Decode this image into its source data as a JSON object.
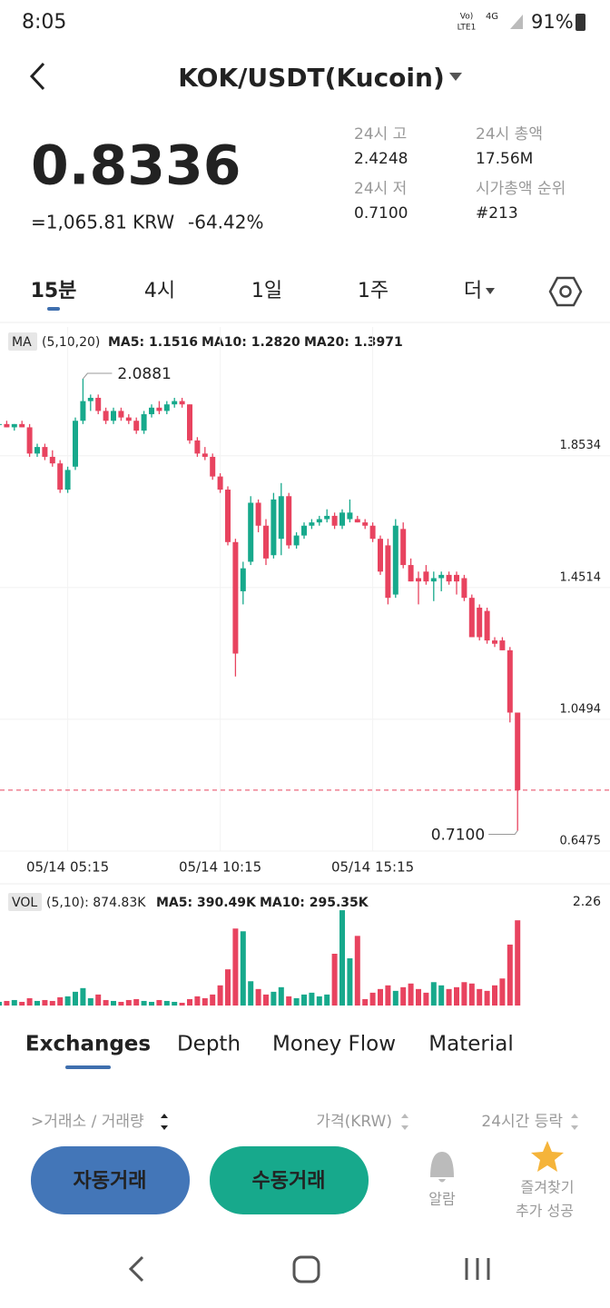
{
  "status": {
    "time": "8:05",
    "net": "Vo)",
    "lte": "LTE1",
    "g": "4G",
    "battery": "91%"
  },
  "header": {
    "title": "KOK/USDT(Kucoin)"
  },
  "price": {
    "last": "0.8336",
    "krw": "=1,065.81 KRW",
    "change": "-64.42%"
  },
  "stats": [
    {
      "label": "24시 고",
      "value": "2.4248"
    },
    {
      "label": "24시 총액",
      "value": "17.56M"
    },
    {
      "label": "24시 저",
      "value": "0.7100"
    },
    {
      "label": "시가총액 순위",
      "value": "#213"
    }
  ],
  "tabs": [
    "15분",
    "4시",
    "1일",
    "1주",
    "더"
  ],
  "legend": {
    "ma": "MA",
    "params": "(5,10,20)",
    "ma5": "MA5: 1.1516",
    "ma10": "MA10: 1.2820",
    "ma20": "MA20: 1.3971"
  },
  "vol_legend": {
    "vol": "VOL",
    "params": "(5,10): 874.83K",
    "ma5": "MA5: 390.49K",
    "ma10": "MA10: 295.35K"
  },
  "chart_data": {
    "type": "candlestick",
    "categories": [
      null,
      null,
      null,
      null,
      null,
      null,
      null,
      null,
      null,
      "05/14 05:15",
      null,
      null,
      null,
      null,
      null,
      null,
      null,
      null,
      null,
      null,
      null,
      null,
      null,
      null,
      null,
      null,
      null,
      null,
      null,
      "05/14 10:15",
      null,
      null,
      null,
      null,
      null,
      null,
      null,
      null,
      null,
      null,
      null,
      null,
      null,
      null,
      null,
      null,
      null,
      null,
      null,
      "05/14 15:15",
      null,
      null,
      null,
      null,
      null,
      null,
      null,
      null,
      null,
      null,
      null,
      null,
      null,
      null,
      null,
      null,
      null,
      null,
      null
    ],
    "open": [
      1.95,
      1.95,
      1.94,
      1.95,
      1.94,
      1.86,
      1.88,
      1.85,
      1.83,
      1.75,
      1.82,
      1.96,
      2.02,
      2.03,
      1.99,
      1.96,
      1.99,
      1.97,
      1.96,
      1.93,
      1.98,
      2.0,
      1.99,
      2.01,
      2.02,
      2.01,
      1.9,
      1.86,
      1.85,
      1.79,
      1.75,
      1.59,
      1.44,
      1.53,
      1.71,
      1.64,
      1.55,
      1.6,
      1.73,
      1.58,
      1.61,
      1.64,
      1.65,
      1.66,
      1.67,
      1.64,
      1.66,
      1.66,
      1.65,
      1.64,
      1.6,
      1.58,
      1.43,
      1.63,
      1.52,
      1.48,
      1.5,
      1.47,
      1.48,
      1.49,
      1.49,
      1.48,
      1.42,
      1.39,
      1.38,
      1.29,
      1.29,
      1.26,
      1.07
    ],
    "high": [
      1.96,
      1.96,
      1.95,
      1.96,
      1.95,
      1.89,
      1.89,
      1.87,
      1.84,
      1.82,
      1.97,
      2.0881,
      2.04,
      2.04,
      2.0,
      2.0,
      2.0,
      1.98,
      1.97,
      1.99,
      2.01,
      2.02,
      2.02,
      2.03,
      2.03,
      2.01,
      1.91,
      1.88,
      1.86,
      1.8,
      1.76,
      1.6,
      1.53,
      1.73,
      1.72,
      1.66,
      1.74,
      1.77,
      1.74,
      1.62,
      1.65,
      1.66,
      1.67,
      1.69,
      1.68,
      1.69,
      1.72,
      1.67,
      1.66,
      1.65,
      1.61,
      1.6,
      1.66,
      1.65,
      1.54,
      1.5,
      1.52,
      1.5,
      1.5,
      1.5,
      1.5,
      1.49,
      1.43,
      1.4,
      1.39,
      1.3,
      1.3,
      1.27,
      1.07
    ],
    "low": [
      1.94,
      1.94,
      1.93,
      1.94,
      1.85,
      1.85,
      1.84,
      1.82,
      1.74,
      1.74,
      1.81,
      1.95,
      1.99,
      1.98,
      1.95,
      1.95,
      1.96,
      1.95,
      1.92,
      1.92,
      1.97,
      1.98,
      1.98,
      2.0,
      2.0,
      1.89,
      1.85,
      1.84,
      1.78,
      1.74,
      1.58,
      1.18,
      1.4,
      1.52,
      1.62,
      1.52,
      1.54,
      1.55,
      1.57,
      1.57,
      1.6,
      1.63,
      1.64,
      1.65,
      1.63,
      1.63,
      1.65,
      1.65,
      1.63,
      1.59,
      1.49,
      1.4,
      1.42,
      1.51,
      1.47,
      1.4,
      1.46,
      1.41,
      1.44,
      1.46,
      1.43,
      1.41,
      1.3,
      1.29,
      1.28,
      1.27,
      1.26,
      1.04,
      0.71
    ],
    "close": [
      1.95,
      1.94,
      1.95,
      1.94,
      1.86,
      1.88,
      1.85,
      1.83,
      1.75,
      1.81,
      1.96,
      2.02,
      2.03,
      1.99,
      1.96,
      1.99,
      1.97,
      1.96,
      1.93,
      1.98,
      2.0,
      1.99,
      2.01,
      2.02,
      2.01,
      1.9,
      1.86,
      1.85,
      1.79,
      1.75,
      1.59,
      1.25,
      1.51,
      1.71,
      1.64,
      1.54,
      1.72,
      1.73,
      1.58,
      1.61,
      1.64,
      1.65,
      1.66,
      1.67,
      1.64,
      1.68,
      1.68,
      1.65,
      1.64,
      1.6,
      1.5,
      1.42,
      1.64,
      1.52,
      1.47,
      1.47,
      1.47,
      1.48,
      1.49,
      1.47,
      1.47,
      1.42,
      1.3,
      1.3,
      1.29,
      1.28,
      1.26,
      1.07,
      0.8336
    ],
    "ylim": [
      0.6475,
      2.246
    ],
    "yticks": [
      1.8534,
      1.4514,
      1.0494,
      0.6475
    ],
    "high_label": "2.0881",
    "low_label": "0.7100",
    "up_color": "#17a98c",
    "down_color": "#e8435f",
    "volume": [
      0.08,
      0.1,
      0.12,
      0.08,
      0.16,
      0.1,
      0.12,
      0.1,
      0.18,
      0.2,
      0.3,
      0.38,
      0.16,
      0.24,
      0.12,
      0.1,
      0.08,
      0.12,
      0.14,
      0.1,
      0.08,
      0.12,
      0.1,
      0.08,
      0.06,
      0.14,
      0.2,
      0.16,
      0.24,
      0.44,
      0.79,
      1.68,
      1.62,
      0.53,
      0.36,
      0.24,
      0.3,
      0.4,
      0.2,
      0.16,
      0.24,
      0.28,
      0.2,
      0.24,
      1.13,
      2.08,
      1.03,
      1.52,
      0.14,
      0.28,
      0.36,
      0.44,
      0.32,
      0.4,
      0.48,
      0.36,
      0.28,
      0.51,
      0.44,
      0.36,
      0.4,
      0.51,
      0.48,
      0.36,
      0.32,
      0.44,
      0.59,
      1.33,
      1.86
    ],
    "vol_ylim": [
      0,
      2.26
    ],
    "vol_yticks": [
      2.26
    ]
  },
  "bottom_tabs": [
    "Exchanges",
    "Depth",
    "Money Flow",
    "Material"
  ],
  "table_header": [
    ">거래소 / 거래량",
    "가격(KRW)",
    "24시간 등락"
  ],
  "actions": {
    "auto": "자동거래",
    "manual": "수동거래",
    "alarm": "알람",
    "favorite_1": "즐겨찾기",
    "favorite_2": "추가 성공"
  }
}
